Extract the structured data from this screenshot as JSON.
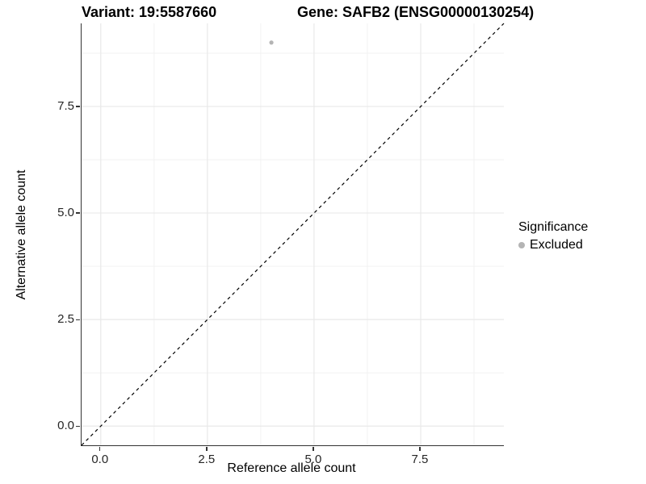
{
  "titles": {
    "variant": "Variant: 19:5587660",
    "gene": "Gene: SAFB2 (ENSG00000130254)"
  },
  "axes": {
    "x_label": "Reference allele count",
    "y_label": "Alternative allele count"
  },
  "legend": {
    "title": "Significance",
    "items": [
      {
        "label": "Excluded",
        "color": "#b4b4b4"
      }
    ]
  },
  "colors": {
    "axis_line": "#333333",
    "major_grid": "#e9e9e9",
    "minor_grid": "#f2f2f2",
    "point": "#b4b4b4",
    "identity_line": "#000000",
    "background": "#ffffff"
  },
  "chart_data": {
    "type": "scatter",
    "title": "Variant: 19:5587660   Gene: SAFB2 (ENSG00000130254)",
    "xlabel": "Reference allele count",
    "ylabel": "Alternative allele count",
    "xlim": [
      -0.45,
      9.45
    ],
    "ylim": [
      -0.45,
      9.45
    ],
    "x_breaks": [
      0,
      2.5,
      5,
      7.5
    ],
    "y_breaks": [
      0,
      2.5,
      5,
      7.5
    ],
    "x_minor_breaks": [
      1.25,
      3.75,
      6.25,
      8.75
    ],
    "y_minor_breaks": [
      1.25,
      3.75,
      6.25,
      8.75
    ],
    "x_tick_labels": [
      "0.0",
      "2.5",
      "5.0",
      "7.5"
    ],
    "y_tick_labels": [
      "0.0",
      "2.5",
      "5.0",
      "7.5"
    ],
    "grid": true,
    "legend_position": "right",
    "legend_title": "Significance",
    "series": [
      {
        "name": "Excluded",
        "color": "#b4b4b4",
        "points": [
          {
            "x": 4,
            "y": 9
          }
        ]
      }
    ],
    "reference_line": {
      "type": "identity",
      "slope": 1,
      "intercept": 0,
      "style": "dashed",
      "color": "#000000"
    }
  }
}
